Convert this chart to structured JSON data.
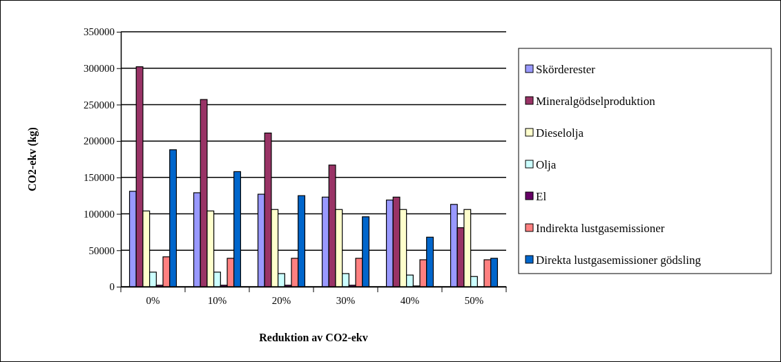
{
  "chart_data": {
    "type": "bar",
    "xlabel": "Reduktion av CO2-ekv",
    "ylabel": "CO2-ekv (kg)",
    "categories": [
      "0%",
      "10%",
      "20%",
      "30%",
      "40%",
      "50%"
    ],
    "series": [
      {
        "name": "Skörderester",
        "color": "#9999ff",
        "values": [
          131000,
          129000,
          127000,
          123000,
          119000,
          113000
        ]
      },
      {
        "name": "Mineralgödselproduktion",
        "color": "#993366",
        "values": [
          302000,
          257000,
          211000,
          167000,
          123000,
          81000
        ]
      },
      {
        "name": "Dieselolja",
        "color": "#ffffcc",
        "values": [
          104000,
          104000,
          106000,
          106000,
          106000,
          106000
        ]
      },
      {
        "name": "Olja",
        "color": "#ccffff",
        "values": [
          20000,
          20000,
          18000,
          18000,
          16000,
          14000
        ]
      },
      {
        "name": "El",
        "color": "#660066",
        "values": [
          2000,
          2000,
          2000,
          2000,
          1000,
          0
        ]
      },
      {
        "name": "Indirekta lustgasemissioner",
        "color": "#ff8080",
        "values": [
          41000,
          39000,
          39000,
          39000,
          37000,
          37000
        ]
      },
      {
        "name": "Direkta lustgasemissioner gödsling",
        "color": "#0066cc",
        "values": [
          188000,
          158000,
          125000,
          96000,
          68000,
          39000
        ]
      }
    ],
    "ylim": [
      0,
      350000
    ],
    "yticks": [
      0,
      50000,
      100000,
      150000,
      200000,
      250000,
      300000,
      350000
    ],
    "grid": "y",
    "legend": "right"
  }
}
